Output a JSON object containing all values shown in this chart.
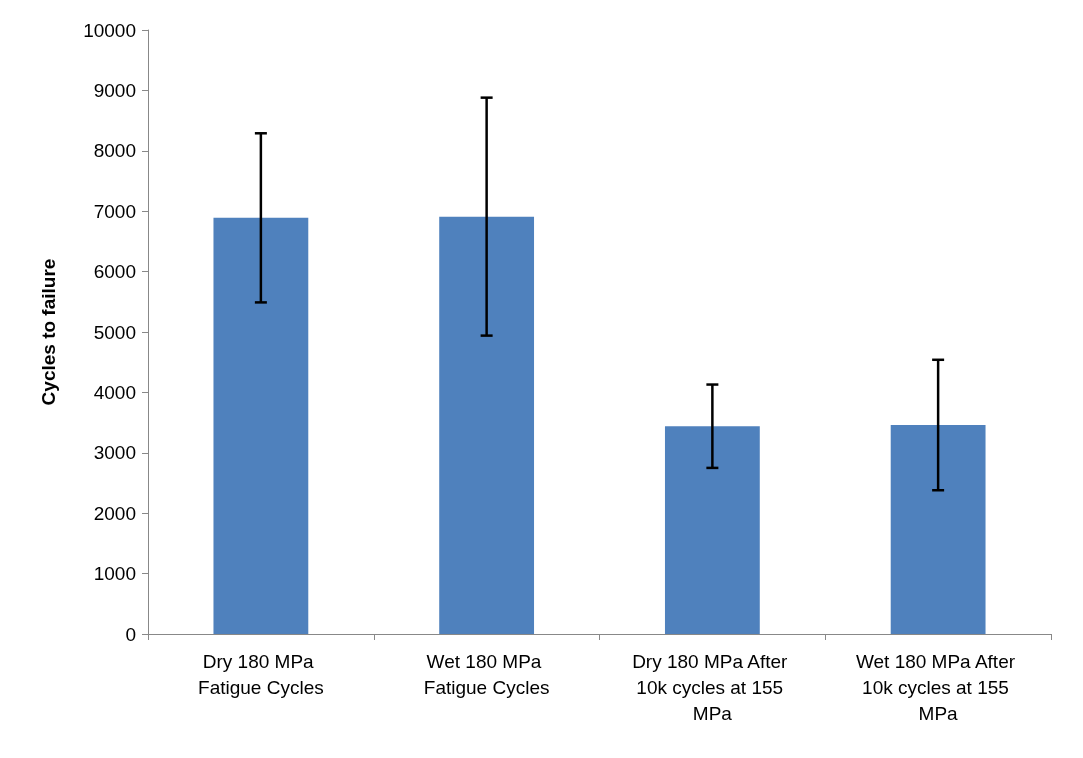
{
  "chart_data": {
    "type": "bar",
    "ylabel": "Cycles to failure",
    "categories": [
      "Dry 180 MPa Fatigue Cycles",
      "Wet 180 MPa Fatigue Cycles",
      "Dry 180 MPa After 10k cycles at 155 MPa",
      "Wet 180 MPa After 10k cycles at 155 MPa"
    ],
    "values": [
      6890,
      6910,
      3440,
      3460
    ],
    "errors": [
      1400,
      1970,
      690,
      1080
    ],
    "color": "#4f81bd",
    "ylim": [
      0,
      10000
    ],
    "yticks": [
      0,
      1000,
      2000,
      3000,
      4000,
      5000,
      6000,
      7000,
      8000,
      9000,
      10000
    ],
    "grid": false
  }
}
